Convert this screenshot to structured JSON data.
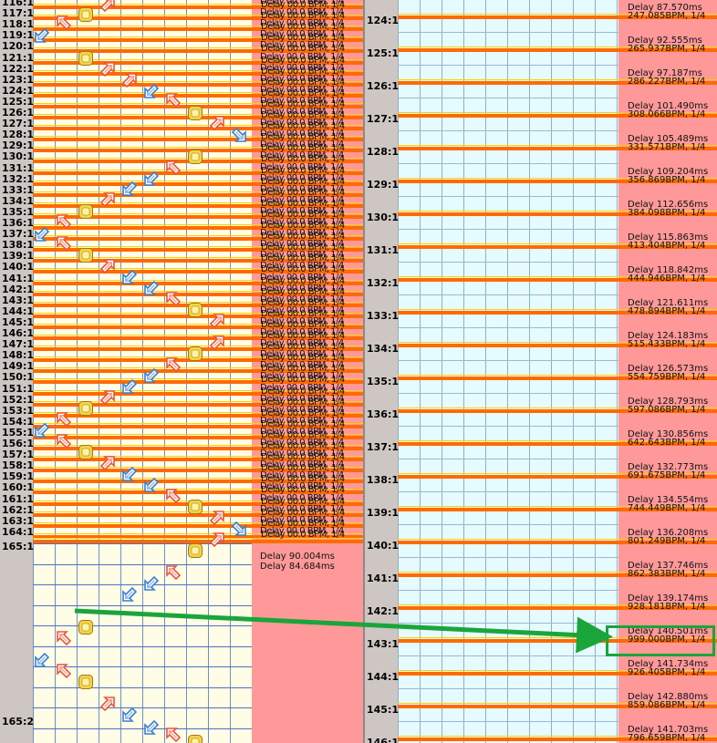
{
  "colors": {
    "grid_bg_left": "#fffde6",
    "grid_bg_right": "#e5fbff",
    "info_bg": "#f99",
    "beat_line": "#ff6a00",
    "accent_green": "#1aa53b"
  },
  "left_pane": {
    "dense_labels": [
      "116:1",
      "117:1",
      "118:1",
      "119:1",
      "120:1",
      "121:1",
      "122:1",
      "123:1",
      "124:1",
      "125:1",
      "126:1",
      "127:1",
      "128:1",
      "129:1",
      "130:1",
      "131:1",
      "132:1",
      "133:1",
      "134:1",
      "135:1",
      "136:1",
      "137:1",
      "138:1",
      "139:1",
      "140:1",
      "141:1",
      "142:1",
      "143:1",
      "144:1",
      "145:1",
      "146:1",
      "147:1",
      "148:1",
      "149:1",
      "150:1",
      "151:1",
      "152:1",
      "153:1",
      "154:1",
      "155:1",
      "156:1",
      "157:1",
      "158:1",
      "159:1",
      "160:1",
      "161:1",
      "162:1",
      "163:1",
      "164:1"
    ],
    "label_165_1": "165:1",
    "label_165_2": "165:2",
    "delay_lines": [
      "Delay 90.004ms",
      "Delay 84.684ms"
    ],
    "overlap_text": "Delay 00.0 BPM, 1/4"
  },
  "right_pane": {
    "rows": [
      {
        "measure": "124:1",
        "bpm": "247.085BPM, 1/4",
        "delay_above": "Delay 87.570ms",
        "delay_below": "Delay 92.555ms"
      },
      {
        "measure": "125:1",
        "bpm": "265.937BPM, 1/4",
        "delay_below": "Delay 97.187ms"
      },
      {
        "measure": "126:1",
        "bpm": "286.227BPM, 1/4",
        "delay_below": "Delay 101.490ms"
      },
      {
        "measure": "127:1",
        "bpm": "308.066BPM, 1/4",
        "delay_below": "Delay 105.489ms"
      },
      {
        "measure": "128:1",
        "bpm": "331.571BPM, 1/4",
        "delay_below": "Delay 109.204ms"
      },
      {
        "measure": "129:1",
        "bpm": "356.869BPM, 1/4",
        "delay_below": "Delay 112.656ms"
      },
      {
        "measure": "130:1",
        "bpm": "384.098BPM, 1/4",
        "delay_below": "Delay 115.863ms"
      },
      {
        "measure": "131:1",
        "bpm": "413.404BPM, 1/4",
        "delay_below": "Delay 118.842ms"
      },
      {
        "measure": "132:1",
        "bpm": "444.946BPM, 1/4",
        "delay_below": "Delay 121.611ms"
      },
      {
        "measure": "133:1",
        "bpm": "478.894BPM, 1/4",
        "delay_below": "Delay 124.183ms"
      },
      {
        "measure": "134:1",
        "bpm": "515.433BPM, 1/4",
        "delay_below": "Delay 126.573ms"
      },
      {
        "measure": "135:1",
        "bpm": "554.759BPM, 1/4",
        "delay_below": "Delay 128.793ms"
      },
      {
        "measure": "136:1",
        "bpm": "597.086BPM, 1/4",
        "delay_below": "Delay 130.856ms"
      },
      {
        "measure": "137:1",
        "bpm": "642.643BPM, 1/4",
        "delay_below": "Delay 132.773ms"
      },
      {
        "measure": "138:1",
        "bpm": "691.675BPM, 1/4",
        "delay_below": "Delay 134.554ms"
      },
      {
        "measure": "139:1",
        "bpm": "744.449BPM, 1/4",
        "delay_below": "Delay 136.208ms"
      },
      {
        "measure": "140:1",
        "bpm": "801.249BPM, 1/4",
        "delay_below": "Delay 137.746ms"
      },
      {
        "measure": "141:1",
        "bpm": "862.383BPM, 1/4",
        "delay_below": "Delay 139.174ms"
      },
      {
        "measure": "142:1",
        "bpm": "928.181BPM, 1/4",
        "delay_below": "Delay 140.501ms"
      },
      {
        "measure": "143:1",
        "bpm": "999.000BPM, 1/4",
        "delay_below": "Delay 141.734ms"
      },
      {
        "measure": "144:1",
        "bpm": "926.405BPM, 1/4",
        "delay_below": "Delay 142.880ms"
      },
      {
        "measure": "145:1",
        "bpm": "859.086BPM, 1/4",
        "delay_below": "Delay 141.703ms"
      },
      {
        "measure": "146:1",
        "bpm": "796.659BPM, 1/4"
      }
    ]
  },
  "icons": {
    "note_arrow_ul": "up-left-arrow-note",
    "note_arrow_ur": "up-right-arrow-note",
    "note_arrow_dl": "down-left-arrow-note",
    "note_arrow_dr": "down-right-arrow-note",
    "note_center": "center-square-note"
  }
}
